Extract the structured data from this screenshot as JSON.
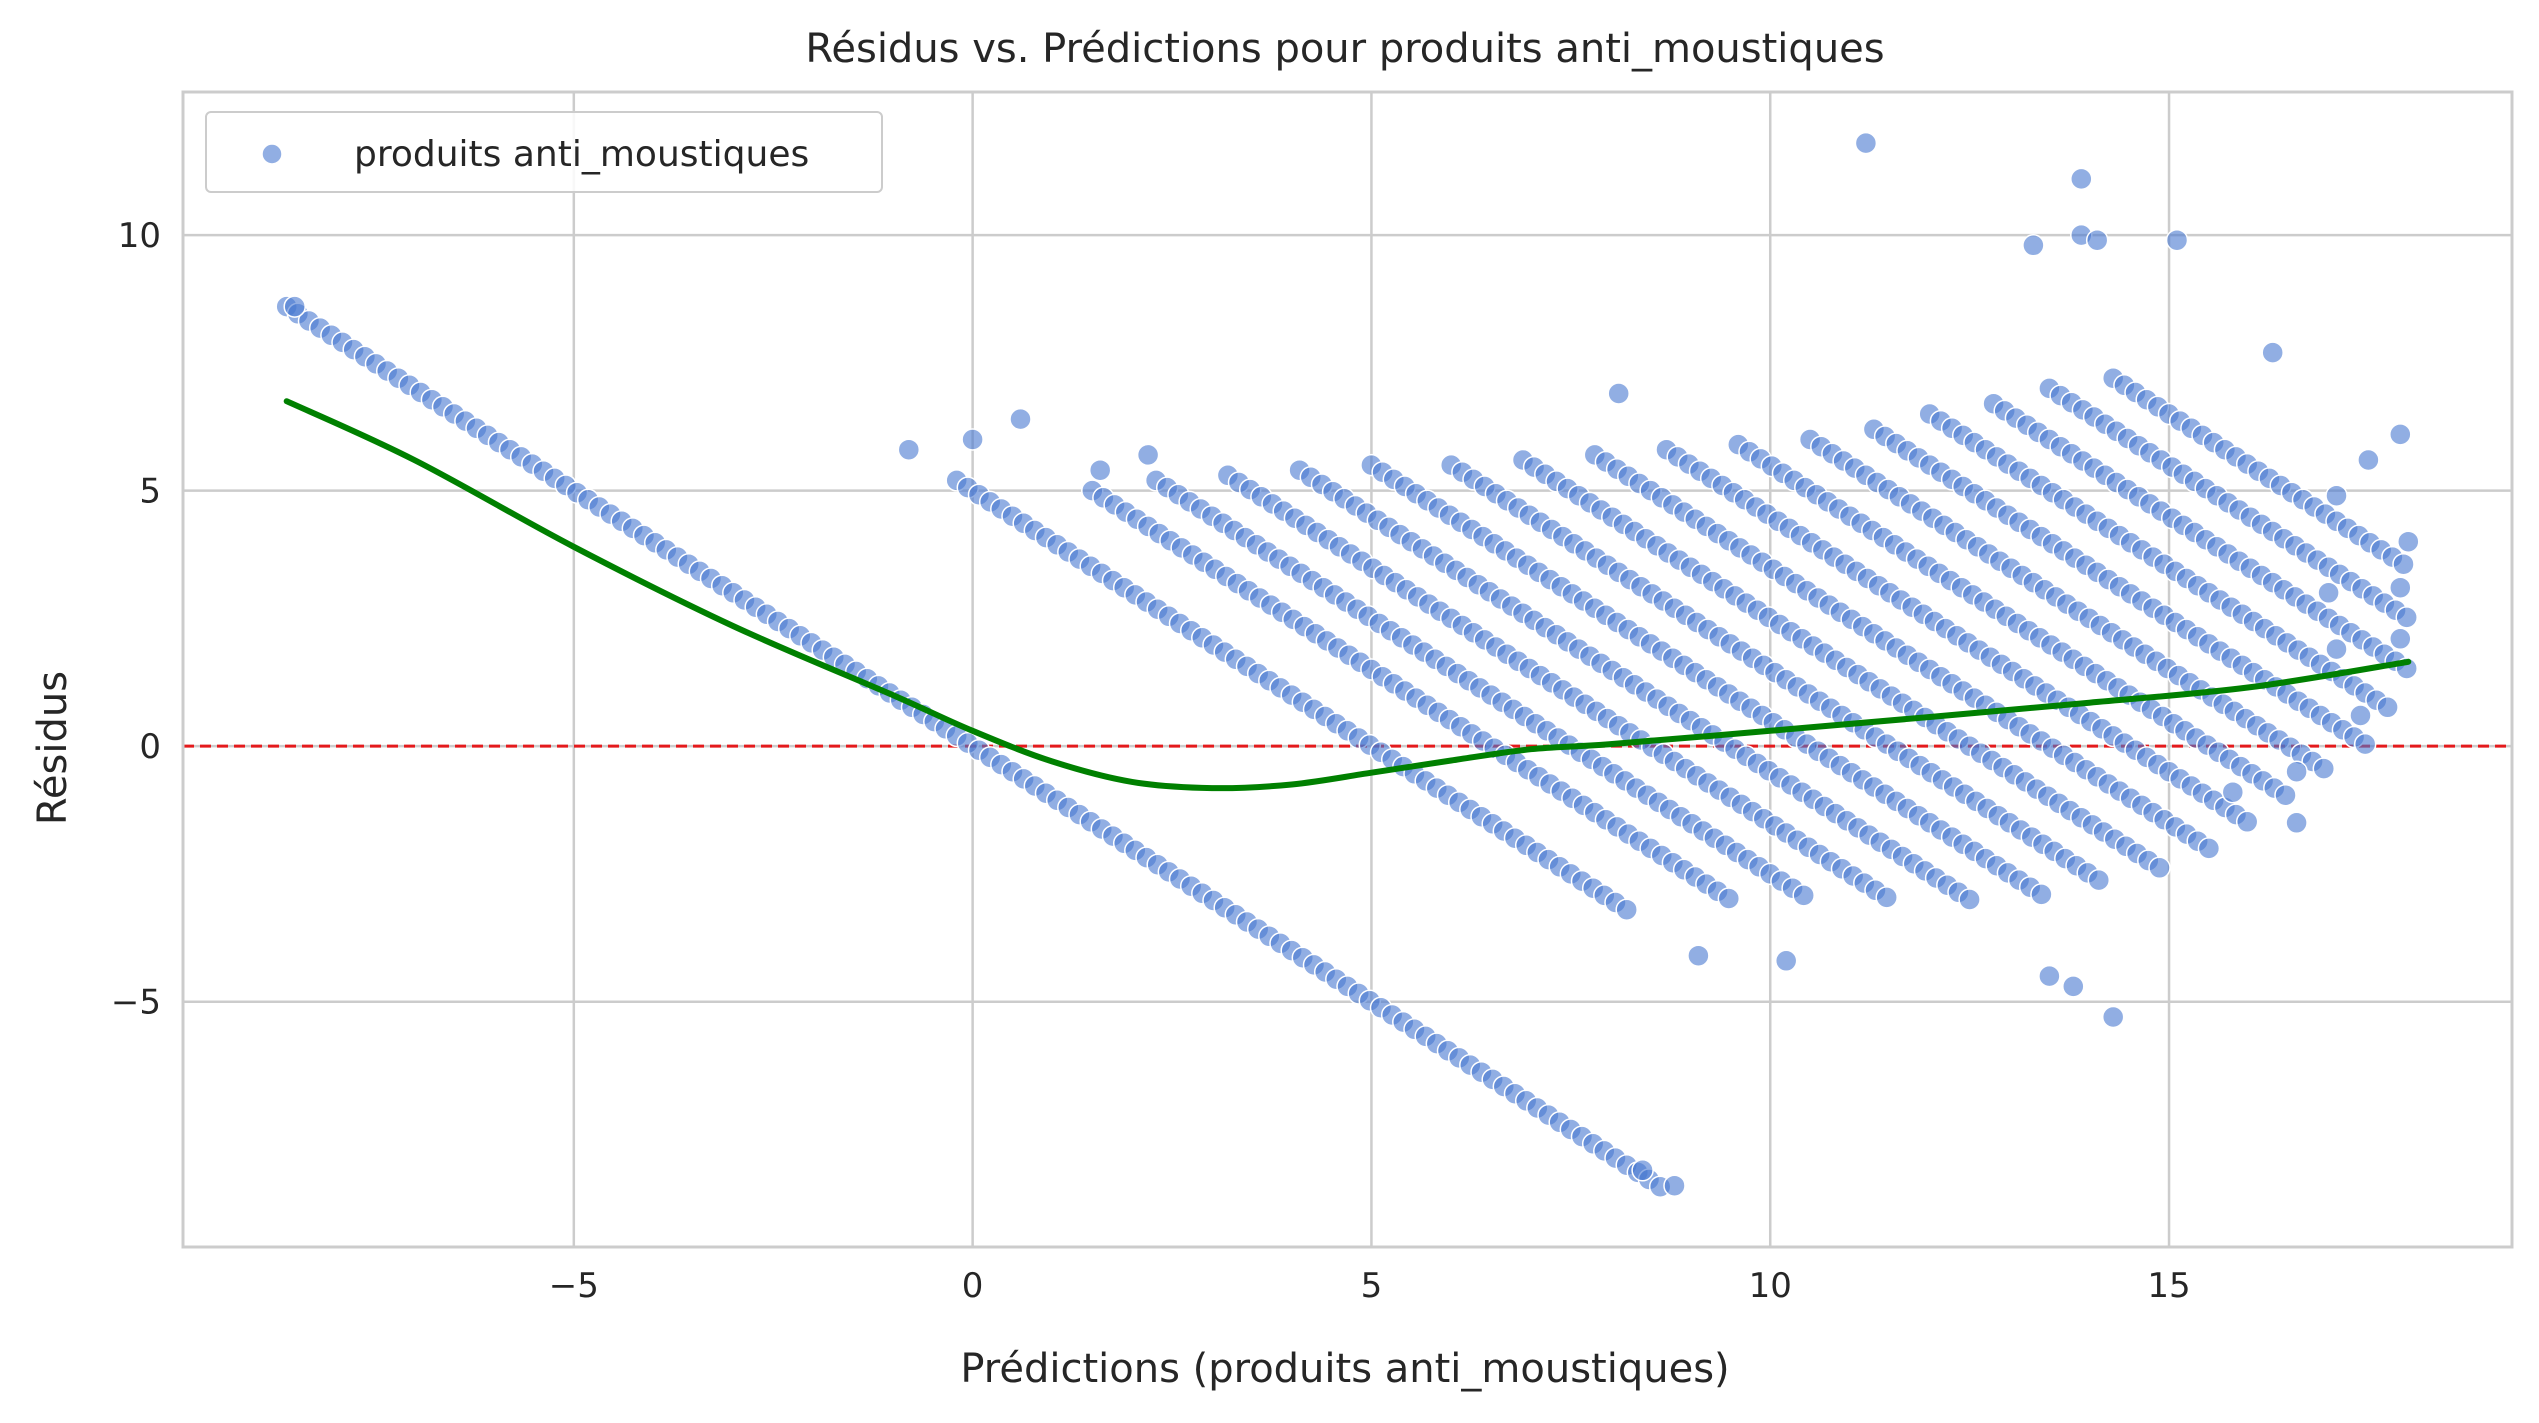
{
  "chart_data": {
    "type": "scatter",
    "title": "Résidus vs. Prédictions pour produits anti_moustiques",
    "xlabel": "Prédictions (produits anti_moustiques)",
    "ylabel": "Résidus",
    "xlim": [
      -9.9,
      19.3
    ],
    "ylim": [
      -9.8,
      12.8
    ],
    "xticks": [
      -5,
      0,
      5,
      10,
      15
    ],
    "yticks": [
      -5,
      0,
      5,
      10
    ],
    "tick_labels_x": [
      "−5",
      "0",
      "5",
      "10",
      "15"
    ],
    "tick_labels_y": [
      "−5",
      "0",
      "5",
      "10"
    ],
    "grid": true,
    "legend": {
      "position": "top-left",
      "entries": [
        "produits anti_moustiques"
      ]
    },
    "colors": {
      "points": "#4878d0",
      "trend": "#008000",
      "zero_line": "#e41a1c",
      "grid": "#cccccc"
    },
    "reference_line": {
      "y": 0,
      "style": "dashed"
    },
    "series": [
      {
        "name": "produits anti_moustiques",
        "kind": "scatter-bands",
        "slope": -1,
        "bands": [
          {
            "intercept": 0,
            "x": [
              -8.6,
              8.7
            ]
          },
          {
            "intercept": 5,
            "x": [
              -0.2,
              8.3
            ]
          },
          {
            "intercept": 6.5,
            "x": [
              1.5,
              9.5
            ]
          },
          {
            "intercept": 7.5,
            "x": [
              2.3,
              10.5
            ]
          },
          {
            "intercept": 8.5,
            "x": [
              3.2,
              11.5
            ]
          },
          {
            "intercept": 9.5,
            "x": [
              4.1,
              12.5
            ]
          },
          {
            "intercept": 10.5,
            "x": [
              5.0,
              13.4
            ]
          },
          {
            "intercept": 11.5,
            "x": [
              6.0,
              14.2
            ]
          },
          {
            "intercept": 12.5,
            "x": [
              6.9,
              15.0
            ]
          },
          {
            "intercept": 13.5,
            "x": [
              7.8,
              15.5
            ]
          },
          {
            "intercept": 14.5,
            "x": [
              8.7,
              16.0
            ]
          },
          {
            "intercept": 15.5,
            "x": [
              9.6,
              16.5
            ]
          },
          {
            "intercept": 16.5,
            "x": [
              10.5,
              17.0
            ]
          },
          {
            "intercept": 17.5,
            "x": [
              11.3,
              17.5
            ]
          },
          {
            "intercept": 18.5,
            "x": [
              12.0,
              17.8
            ]
          },
          {
            "intercept": 19.5,
            "x": [
              12.8,
              18.0
            ]
          },
          {
            "intercept": 20.5,
            "x": [
              13.5,
              18.0
            ]
          },
          {
            "intercept": 21.5,
            "x": [
              14.3,
              18.0
            ]
          }
        ],
        "extra_points": [
          {
            "x": -8.5,
            "y": 8.6
          },
          {
            "x": -0.8,
            "y": 5.8
          },
          {
            "x": 0.0,
            "y": 6.0
          },
          {
            "x": 0.6,
            "y": 6.4
          },
          {
            "x": 1.6,
            "y": 5.4
          },
          {
            "x": 2.2,
            "y": 5.7
          },
          {
            "x": 8.1,
            "y": 6.9
          },
          {
            "x": 9.1,
            "y": -4.1
          },
          {
            "x": 10.2,
            "y": -4.2
          },
          {
            "x": 11.2,
            "y": 11.8
          },
          {
            "x": 13.3,
            "y": 9.8
          },
          {
            "x": 13.9,
            "y": 11.1
          },
          {
            "x": 13.9,
            "y": 10.0
          },
          {
            "x": 14.1,
            "y": 9.9
          },
          {
            "x": 15.1,
            "y": 9.9
          },
          {
            "x": 14.3,
            "y": -5.3
          },
          {
            "x": 13.8,
            "y": -4.7
          },
          {
            "x": 13.5,
            "y": -4.5
          },
          {
            "x": 16.6,
            "y": -1.5
          },
          {
            "x": 16.6,
            "y": -0.5
          },
          {
            "x": 15.8,
            "y": -0.9
          },
          {
            "x": 17.4,
            "y": 0.6
          },
          {
            "x": 17.1,
            "y": 1.9
          },
          {
            "x": 17.9,
            "y": 2.1
          },
          {
            "x": 17.9,
            "y": 3.1
          },
          {
            "x": 18.0,
            "y": 4.0
          },
          {
            "x": 17.9,
            "y": 6.1
          },
          {
            "x": 17.5,
            "y": 5.6
          },
          {
            "x": 17.1,
            "y": 4.9
          },
          {
            "x": 8.8,
            "y": -8.6
          },
          {
            "x": 8.4,
            "y": -8.3
          },
          {
            "x": 16.3,
            "y": 7.7
          },
          {
            "x": 17.0,
            "y": 3.0
          }
        ]
      },
      {
        "name": "",
        "kind": "line",
        "points": [
          {
            "x": -8.6,
            "y": 6.75
          },
          {
            "x": -7,
            "y": 5.6
          },
          {
            "x": -5,
            "y": 3.9
          },
          {
            "x": -3,
            "y": 2.35
          },
          {
            "x": -1,
            "y": 1.0
          },
          {
            "x": 0,
            "y": 0.3
          },
          {
            "x": 1,
            "y": -0.3
          },
          {
            "x": 2,
            "y": -0.7
          },
          {
            "x": 3,
            "y": -0.82
          },
          {
            "x": 4,
            "y": -0.75
          },
          {
            "x": 5,
            "y": -0.52
          },
          {
            "x": 6,
            "y": -0.28
          },
          {
            "x": 7,
            "y": -0.06
          },
          {
            "x": 8,
            "y": 0.04
          },
          {
            "x": 10,
            "y": 0.3
          },
          {
            "x": 12,
            "y": 0.57
          },
          {
            "x": 14,
            "y": 0.85
          },
          {
            "x": 16,
            "y": 1.15
          },
          {
            "x": 18,
            "y": 1.65
          }
        ]
      }
    ]
  }
}
